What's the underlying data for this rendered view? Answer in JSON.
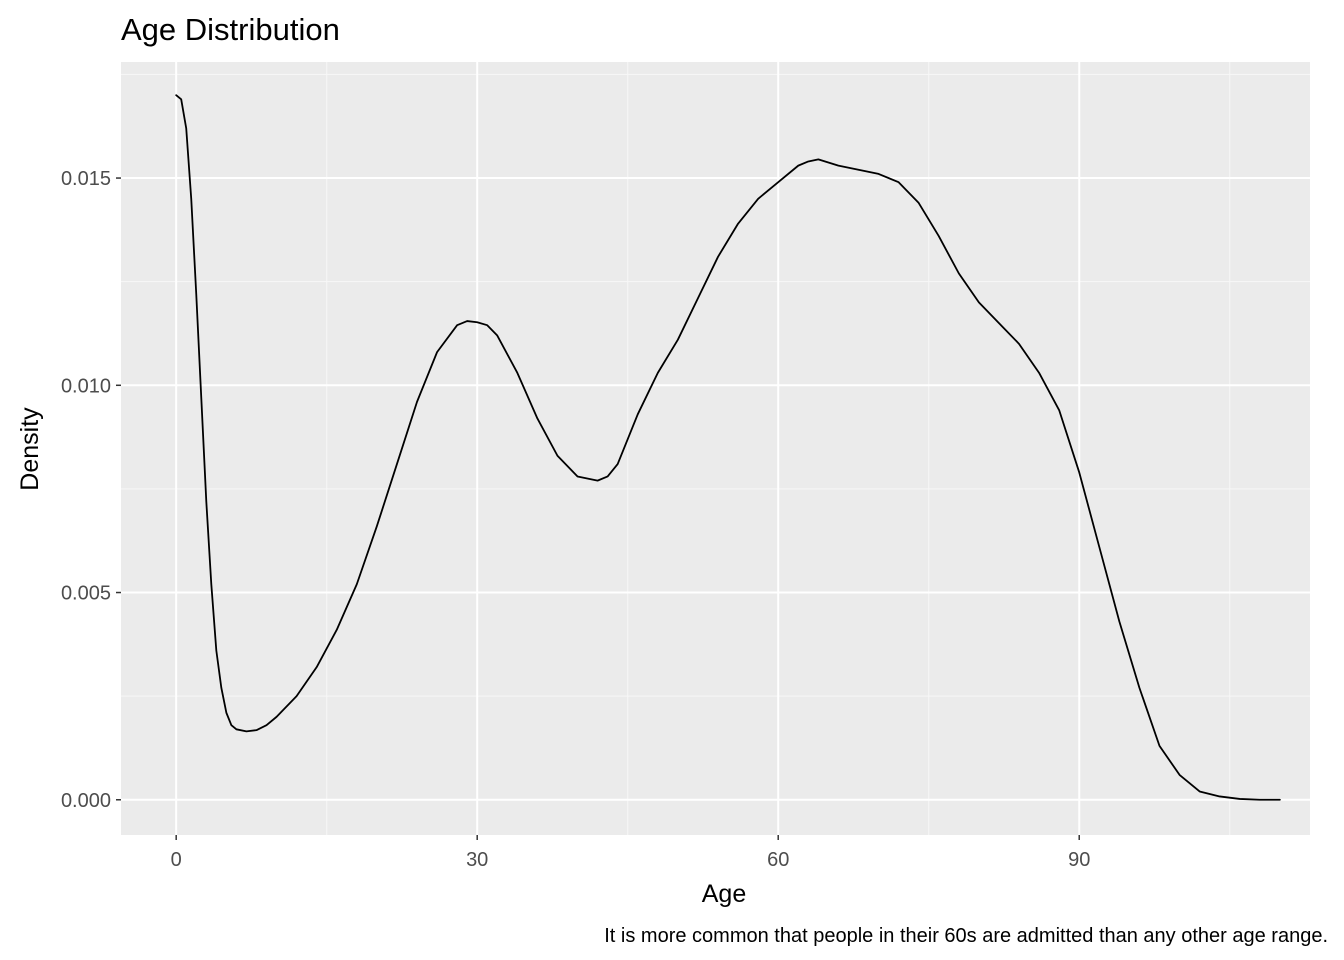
{
  "chart_data": {
    "type": "line",
    "subtype": "density",
    "title": "Age Distribution",
    "xlabel": "Age",
    "ylabel": "Density",
    "caption": "It is more common that people in their 60s are admitted than any other age range.",
    "xlim": [
      -5.5,
      113
    ],
    "ylim": [
      -0.00085,
      0.0178
    ],
    "x_ticks": [
      0,
      30,
      60,
      90
    ],
    "x_tick_labels": [
      "0",
      "30",
      "60",
      "90"
    ],
    "y_ticks": [
      0.0,
      0.005,
      0.01,
      0.015
    ],
    "y_tick_labels": [
      "0.000",
      "0.005",
      "0.010",
      "0.015"
    ],
    "x_minor": [
      15,
      45,
      75,
      105
    ],
    "y_minor": [
      0.0025,
      0.0075,
      0.0125,
      0.0175
    ],
    "grid": true,
    "legend": "none",
    "series": [
      {
        "line_color": "#000000",
        "x": [
          0,
          0.5,
          1,
          1.5,
          2,
          2.5,
          3,
          3.5,
          4,
          4.5,
          5,
          5.5,
          6,
          7,
          8,
          9,
          10,
          12,
          14,
          16,
          18,
          20,
          22,
          24,
          26,
          28,
          29,
          30,
          31,
          32,
          34,
          36,
          38,
          40,
          42,
          43,
          44,
          46,
          48,
          50,
          52,
          54,
          56,
          58,
          60,
          62,
          63,
          64,
          66,
          68,
          70,
          72,
          74,
          76,
          78,
          80,
          82,
          84,
          86,
          88,
          90,
          92,
          94,
          96,
          98,
          100,
          102,
          104,
          106,
          108,
          110
        ],
        "y": [
          0.017,
          0.0169,
          0.0162,
          0.0145,
          0.0122,
          0.0097,
          0.0072,
          0.0052,
          0.0036,
          0.0027,
          0.0021,
          0.0018,
          0.0017,
          0.00165,
          0.00168,
          0.0018,
          0.002,
          0.0025,
          0.0032,
          0.0041,
          0.0052,
          0.0066,
          0.0081,
          0.0096,
          0.0108,
          0.01145,
          0.01155,
          0.01152,
          0.01145,
          0.0112,
          0.0103,
          0.0092,
          0.0083,
          0.0078,
          0.0077,
          0.0078,
          0.0081,
          0.0093,
          0.0103,
          0.0111,
          0.0121,
          0.0131,
          0.0139,
          0.0145,
          0.0149,
          0.0153,
          0.0154,
          0.01545,
          0.0153,
          0.0152,
          0.0151,
          0.0149,
          0.0144,
          0.0136,
          0.0127,
          0.012,
          0.0115,
          0.011,
          0.0103,
          0.0094,
          0.0079,
          0.0061,
          0.0043,
          0.0027,
          0.0013,
          0.0006,
          0.0002,
          8e-05,
          2e-05,
          0.0,
          0.0
        ]
      }
    ]
  }
}
